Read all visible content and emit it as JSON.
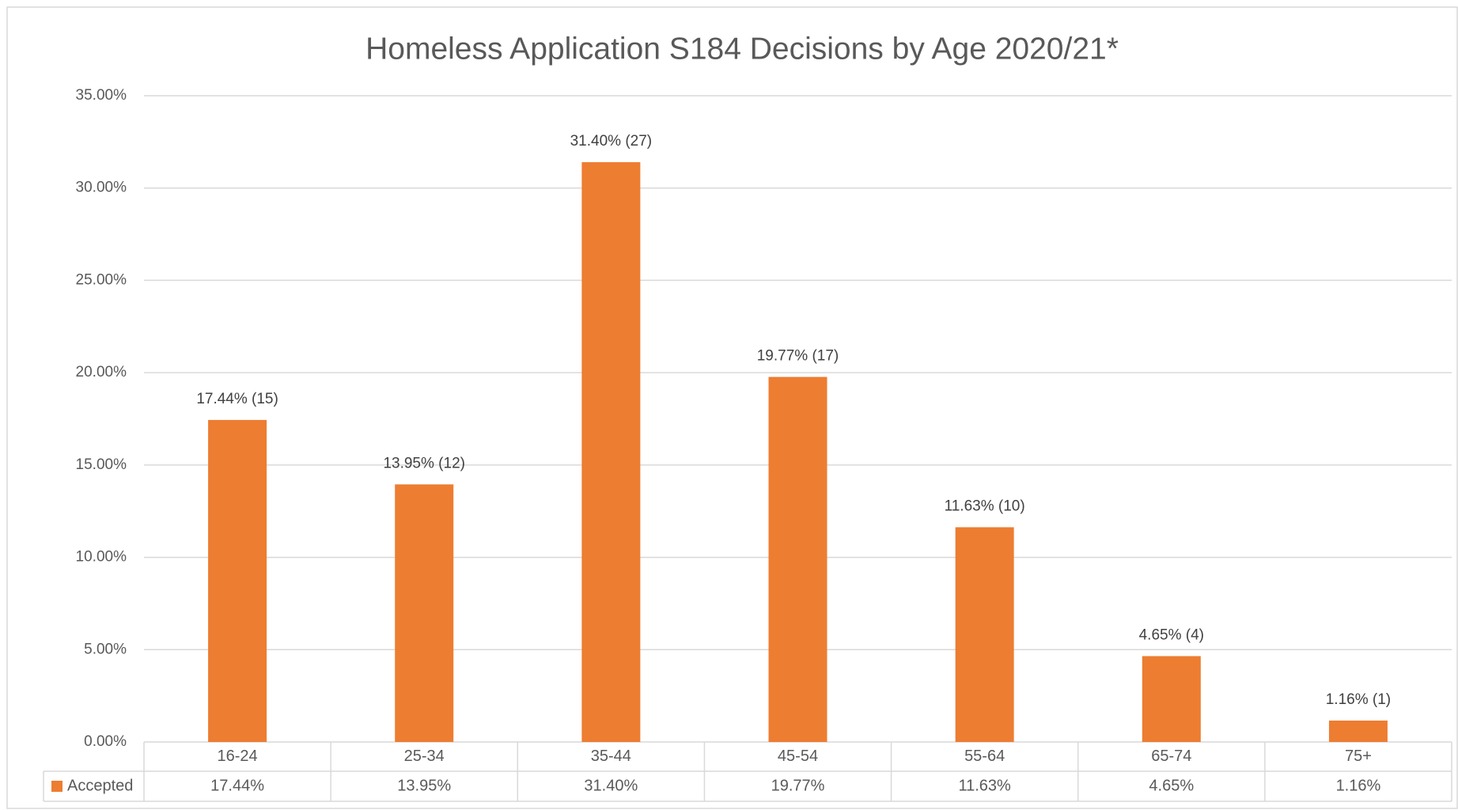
{
  "chart_data": {
    "type": "bar",
    "title": "Homeless Application S184 Decisions by Age 2020/21*",
    "categories": [
      "16-24",
      "25-34",
      "35-44",
      "45-54",
      "55-64",
      "65-74",
      "75+"
    ],
    "series": [
      {
        "name": "Accepted",
        "color": "#ed7d31",
        "values": [
          17.44,
          13.95,
          31.4,
          19.77,
          11.63,
          4.65,
          1.16
        ],
        "value_labels": [
          "17.44% (15)",
          "13.95% (12)",
          "31.40% (27)",
          "19.77% (17)",
          "11.63% (10)",
          "4.65% (4)",
          "1.16% (1)"
        ],
        "table_labels": [
          "17.44%",
          "13.95%",
          "31.40%",
          "19.77%",
          "11.63%",
          "4.65%",
          "1.16%"
        ]
      }
    ],
    "ylim": [
      0,
      35
    ],
    "yticks": [
      {
        "value": 0,
        "label": "0.00%"
      },
      {
        "value": 5,
        "label": "5.00%"
      },
      {
        "value": 10,
        "label": "10.00%"
      },
      {
        "value": 15,
        "label": "15.00%"
      },
      {
        "value": 20,
        "label": "20.00%"
      },
      {
        "value": 25,
        "label": "25.00%"
      },
      {
        "value": 30,
        "label": "30.00%"
      },
      {
        "value": 35,
        "label": "35.00%"
      }
    ],
    "grid": true,
    "legend": "data-table"
  }
}
